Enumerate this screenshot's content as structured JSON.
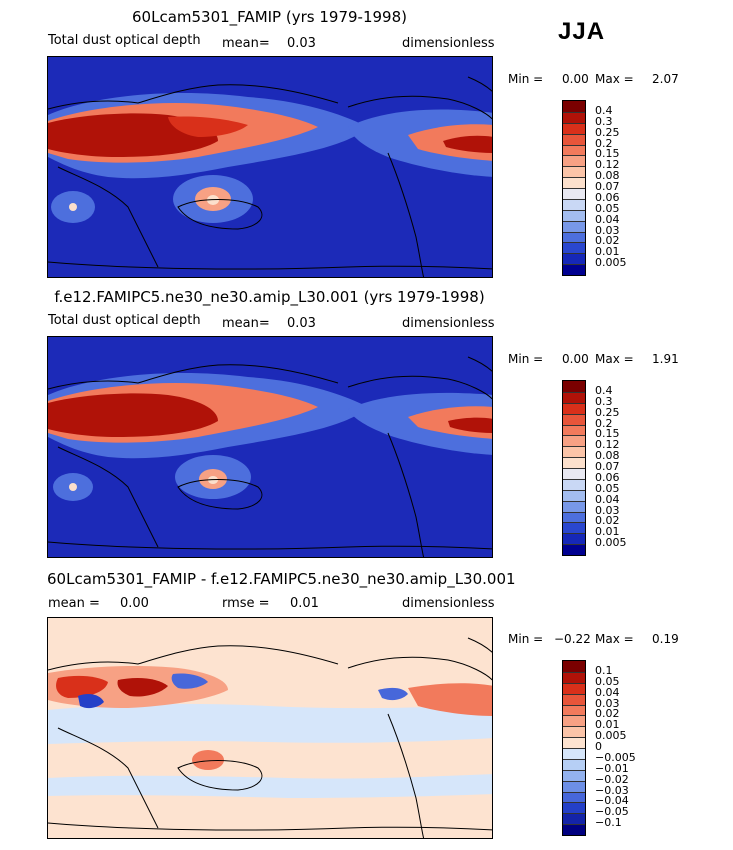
{
  "season": "JJA",
  "panels": [
    {
      "id": "model",
      "title": "60Lcam5301_FAMIP (yrs 1979-1998)",
      "variable": "Total dust optical depth",
      "stat1_label": "mean=",
      "stat1_value": "0.03",
      "stat2_label": "",
      "stat2_value": "",
      "units": "dimensionless",
      "min_label": "Min =",
      "min_value": "0.00",
      "max_label": "Max =",
      "max_value": "2.07"
    },
    {
      "id": "control",
      "title": "f.e12.FAMIPC5.ne30_ne30.amip_L30.001 (yrs 1979-1998)",
      "variable": "Total dust optical depth",
      "stat1_label": "mean=",
      "stat1_value": "0.03",
      "stat2_label": "",
      "stat2_value": "",
      "units": "dimensionless",
      "min_label": "Min =",
      "min_value": "0.00",
      "max_label": "Max =",
      "max_value": "1.91"
    },
    {
      "id": "diff",
      "title": "60Lcam5301_FAMIP - f.e12.FAMIPC5.ne30_ne30.amip_L30.001",
      "variable": "",
      "stat1_label": "mean =",
      "stat1_value": "0.00",
      "stat2_label": "rmse =",
      "stat2_value": "0.01",
      "units": "dimensionless",
      "min_label": "Min =",
      "min_value": "−0.22",
      "max_label": "Max =",
      "max_value": "0.19"
    }
  ],
  "colorbars": {
    "abs_levels": [
      "0.4",
      "0.3",
      "0.25",
      "0.2",
      "0.15",
      "0.12",
      "0.08",
      "0.07",
      "0.06",
      "0.05",
      "0.04",
      "0.03",
      "0.02",
      "0.01",
      "0.005"
    ],
    "abs_colors": [
      "#7a0000",
      "#b01208",
      "#d9301a",
      "#e8553a",
      "#f27a5c",
      "#f7a184",
      "#fbc4a8",
      "#fce0cc",
      "#e9e9f2",
      "#c9d8f5",
      "#a3bdf0",
      "#7898e8",
      "#4d6fdd",
      "#2a47cf",
      "#1628b8",
      "#000090"
    ],
    "diff_levels": [
      "0.1",
      "0.05",
      "0.04",
      "0.03",
      "0.02",
      "0.01",
      "0.005",
      "0",
      "−0.005",
      "−0.01",
      "−0.02",
      "−0.03",
      "−0.04",
      "−0.05",
      "−0.1"
    ],
    "diff_colors": [
      "#7a0000",
      "#b01208",
      "#d9301a",
      "#e8553a",
      "#f27a5c",
      "#f7a184",
      "#fbc4a8",
      "#fde3d0",
      "#d6e6fa",
      "#b6cff5",
      "#93b2ef",
      "#6d8fe6",
      "#4767da",
      "#2440c8",
      "#1424a8",
      "#000080"
    ]
  },
  "colors": {
    "ocean_background": "#1c2ab8",
    "diff_background": "#fde3d0",
    "coastline": "#000000"
  }
}
